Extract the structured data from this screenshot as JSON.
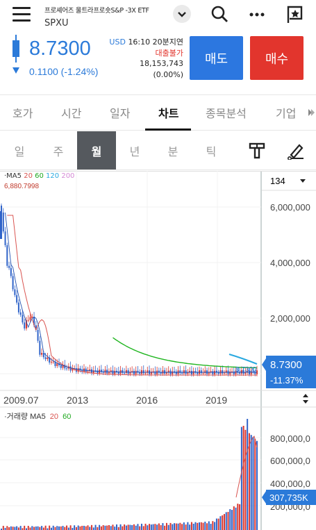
{
  "header": {
    "full_name": "프로셰어즈 울트라프로숏S&P -3X ETF",
    "code": "SPXU"
  },
  "quote": {
    "price": "8.7300",
    "change": "0.1100 (-1.24%)",
    "currency": "USD",
    "time": "16:10",
    "delay": "20분지연",
    "loan_status": "대출불가",
    "volume": "18,153,743",
    "volume_change": "(0.00%)"
  },
  "actions": {
    "sell": "매도",
    "buy": "매수"
  },
  "tabs": [
    "호가",
    "시간",
    "일자",
    "차트",
    "종목분석",
    "기업"
  ],
  "tab_active": "차트",
  "periods": [
    "일",
    "주",
    "월",
    "년",
    "분",
    "틱"
  ],
  "period_active": "월",
  "chart": {
    "count_select": "134",
    "ma_legend": {
      "prefix": "·MA5",
      "values": [
        "20",
        "60",
        "120",
        "200"
      ],
      "colors": [
        "#d9534f",
        "#1fa81f",
        "#2aa9e0",
        "#d58ad6"
      ]
    },
    "max_label": "6,880.7998",
    "last_price_label": "8.7300",
    "last_change_label": "-11.37%",
    "inline_price_label": "8.7300",
    "yaxis": [
      "6,000,000",
      "4,000,000",
      "2,000,000"
    ],
    "xaxis": [
      "2009.07",
      "2013",
      "2016",
      "2019"
    ],
    "volume_legend": {
      "prefix": "·거래량 MA5",
      "values": [
        "20",
        "60"
      ]
    },
    "volume_yaxis": [
      "800,000,0",
      "600,000,0",
      "400,000,0",
      "200,000,0"
    ],
    "volume_last_label": "307,735K",
    "colors": {
      "up": "#d9372f",
      "down": "#2f63c9",
      "accent": "#2b7ad9"
    }
  }
}
